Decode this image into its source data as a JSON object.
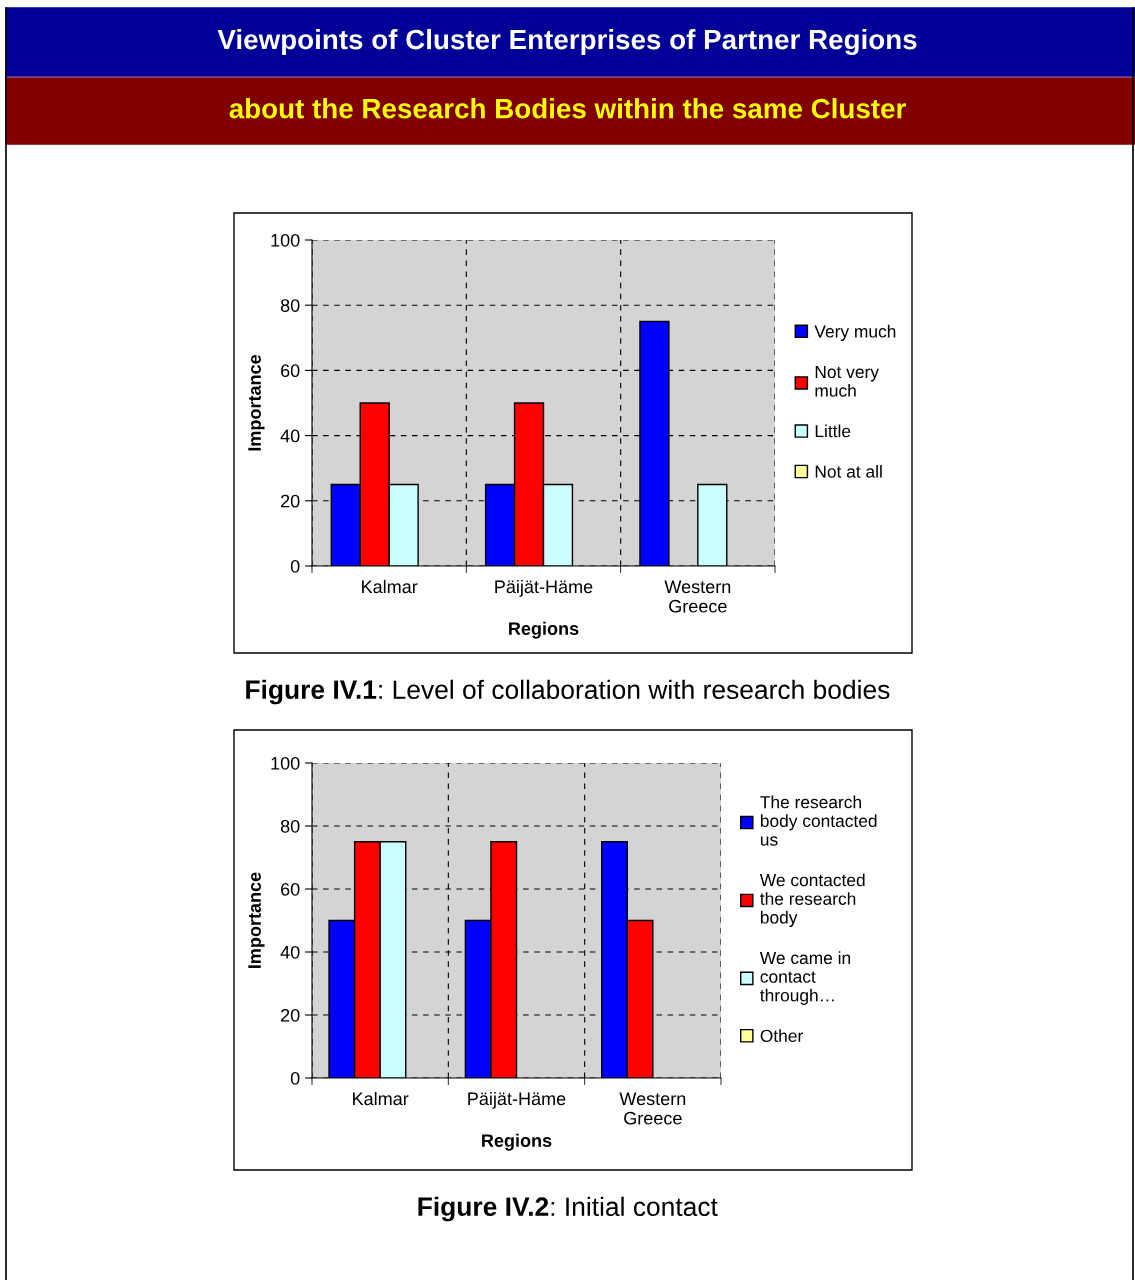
{
  "chart_data": [
    {
      "type": "bar",
      "title": "Viewpoints of Cluster Enterprises of Partner Regions",
      "subtitle": "about the Research Bodies within the same Cluster",
      "xlabel": "Regions",
      "ylabel": "Importance",
      "categories": [
        "Kalmar",
        "Päijät-Häme",
        "Western Greece"
      ],
      "series": [
        {
          "name": "Very much",
          "color": "#0000ff",
          "values": [
            25,
            25,
            75
          ]
        },
        {
          "name": "Not very much",
          "color": "#ff0000",
          "values": [
            50,
            50,
            null
          ]
        },
        {
          "name": "Little",
          "color": "#ccffff",
          "values": [
            25,
            25,
            25
          ]
        },
        {
          "name": "Not at all",
          "color": "#ffff99",
          "values": [
            null,
            null,
            null
          ]
        }
      ],
      "ylim": [
        0,
        100
      ],
      "yticks": [
        0,
        20,
        40,
        60,
        80,
        100
      ],
      "grid": true,
      "legend": "right",
      "annotations": [
        "Figure IV.1: Level of collaboration with research bodies"
      ]
    },
    {
      "type": "bar",
      "xlabel": "Regions",
      "ylabel": "Importance",
      "categories": [
        "Kalmar",
        "Päijät-Häme",
        "Western Greece"
      ],
      "series": [
        {
          "name": "The research body contacted us",
          "color": "#0000ff",
          "values": [
            50,
            50,
            75
          ]
        },
        {
          "name": "We contacted the research body",
          "color": "#ff0000",
          "values": [
            75,
            75,
            50
          ]
        },
        {
          "name": "We came in contact through…",
          "color": "#ccffff",
          "values": [
            75,
            null,
            null
          ]
        },
        {
          "name": "Other",
          "color": "#ffff99",
          "values": [
            null,
            null,
            null
          ]
        }
      ],
      "ylim": [
        0,
        100
      ],
      "yticks": [
        0,
        20,
        40,
        60,
        80,
        100
      ],
      "grid": true,
      "legend": "right",
      "annotations": [
        "Figure IV.2: Initial contact"
      ]
    }
  ]
}
